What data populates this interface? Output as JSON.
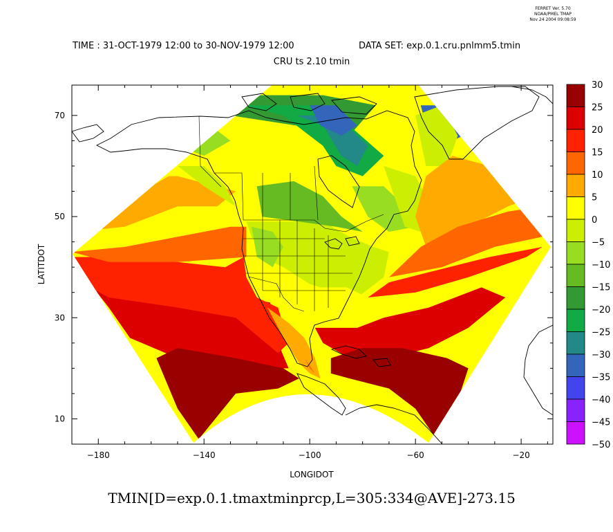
{
  "stamp": {
    "line1": "FERRET Ver. 5.70",
    "line2": "NOAA/PMEL TMAP",
    "line3": "Nov 24 2004 09:08:59"
  },
  "header": {
    "time": "TIME : 31-OCT-1979 12:00 to 30-NOV-1979 12:00",
    "dataset": "DATA SET: exp.0.1.cru.pnlmm5.tmin",
    "subtitle": "CRU ts 2.10 tmin"
  },
  "footer": {
    "expression": "TMIN[D=exp.0.1.tmaxtminprcp,L=305:334@AVE]-273.15"
  },
  "chart_data": {
    "type": "heatmap",
    "title": "CRU ts 2.10 tmin",
    "xlabel": "LONGIDOT",
    "ylabel": "LATITDOT",
    "xlim": [
      -190,
      -8
    ],
    "ylim": [
      5,
      76
    ],
    "x_ticks": [
      -180,
      -140,
      -100,
      -60,
      -20
    ],
    "x_tick_labels": [
      "−180",
      "−140",
      "−100",
      "−60",
      "−20"
    ],
    "y_ticks": [
      10,
      30,
      50,
      70
    ],
    "y_tick_labels": [
      "10",
      "30",
      "50",
      "70"
    ],
    "grid": false,
    "colorbar": {
      "levels": [
        30,
        25,
        20,
        15,
        10,
        5,
        0,
        -5,
        -10,
        -15,
        -20,
        -25,
        -30,
        -35,
        -40,
        -45,
        -50
      ],
      "labels": [
        "30",
        "25",
        "20",
        "15",
        "10",
        "5",
        "0",
        "−5",
        "−10",
        "−15",
        "−20",
        "−25",
        "−30",
        "−35",
        "−40",
        "−45",
        "−50"
      ],
      "colors": [
        "#990000",
        "#dd0000",
        "#ff2200",
        "#ff6600",
        "#ffaa00",
        "#ffff00",
        "#ccee00",
        "#99dd22",
        "#66bb22",
        "#339933",
        "#11aa44",
        "#228888",
        "#3366bb",
        "#4444ee",
        "#8822ff",
        "#cc11ff"
      ]
    },
    "regions": [
      {
        "band": "20 to 25",
        "color": "#dd0000",
        "outline": [
          [
            -190,
            40
          ],
          [
            -170,
            39
          ],
          [
            -150,
            38
          ],
          [
            -125,
            34
          ],
          [
            -115,
            33
          ],
          [
            -112,
            25
          ],
          [
            -108,
            20
          ],
          [
            -130,
            20
          ],
          [
            -150,
            22
          ],
          [
            -168,
            26
          ],
          [
            -176,
            32
          ],
          [
            -182,
            36
          ]
        ]
      },
      {
        "band": "15 to 20",
        "color": "#ff2200",
        "outline": [
          [
            -190,
            42
          ],
          [
            -176,
            42
          ],
          [
            -150,
            41
          ],
          [
            -132,
            40
          ],
          [
            -125,
            42
          ],
          [
            -124,
            38
          ],
          [
            -120,
            34
          ],
          [
            -112,
            32
          ],
          [
            -108,
            25
          ],
          [
            -112,
            23
          ],
          [
            -128,
            30
          ],
          [
            -150,
            32
          ],
          [
            -176,
            34
          ],
          [
            -190,
            38
          ]
        ]
      },
      {
        "band": "10 to 15",
        "color": "#ff6600",
        "outline": [
          [
            -190,
            43
          ],
          [
            -170,
            44
          ],
          [
            -150,
            46
          ],
          [
            -130,
            48
          ],
          [
            -124,
            48
          ],
          [
            -124,
            42
          ],
          [
            -150,
            41
          ],
          [
            -176,
            41
          ]
        ]
      },
      {
        "band": "5 to 10",
        "color": "#ffaa00",
        "outline": [
          [
            -188,
            47
          ],
          [
            -170,
            48
          ],
          [
            -150,
            52
          ],
          [
            -135,
            52
          ],
          [
            -128,
            55
          ],
          [
            -150,
            58
          ],
          [
            -170,
            58
          ],
          [
            -185,
            56
          ]
        ]
      },
      {
        "band": "0 to 5",
        "color": "#ffff00",
        "outline": [
          [
            -180,
            62
          ],
          [
            -165,
            65
          ],
          [
            -155,
            63
          ],
          [
            -150,
            59
          ],
          [
            -160,
            56
          ],
          [
            -175,
            55
          ]
        ]
      },
      {
        "band": "-5 to 0",
        "color": "#ccee00",
        "outline": [
          [
            -150,
            60
          ],
          [
            -140,
            60
          ],
          [
            -132,
            56
          ],
          [
            -128,
            52
          ],
          [
            -140,
            56
          ]
        ]
      },
      {
        "band": "-10 to -5",
        "color": "#99dd22",
        "outline": [
          [
            -165,
            70
          ],
          [
            -150,
            71
          ],
          [
            -140,
            69
          ],
          [
            -130,
            65
          ],
          [
            -140,
            62
          ],
          [
            -160,
            66
          ]
        ]
      },
      {
        "band": "-20 to -15",
        "color": "#339933",
        "outline": [
          [
            -150,
            72
          ],
          [
            -120,
            74
          ],
          [
            -95,
            74
          ],
          [
            -75,
            72
          ],
          [
            -85,
            66
          ],
          [
            -105,
            68
          ],
          [
            -130,
            70
          ]
        ]
      },
      {
        "band": "-25 to -20",
        "color": "#11aa44",
        "outline": [
          [
            -125,
            72
          ],
          [
            -110,
            70
          ],
          [
            -95,
            64
          ],
          [
            -90,
            60
          ],
          [
            -80,
            58
          ],
          [
            -72,
            62
          ],
          [
            -85,
            68
          ],
          [
            -100,
            72
          ]
        ]
      },
      {
        "band": "-30 to -25",
        "color": "#228888",
        "outline": [
          [
            -105,
            70
          ],
          [
            -95,
            68
          ],
          [
            -88,
            62
          ],
          [
            -82,
            60
          ],
          [
            -78,
            64
          ],
          [
            -90,
            70
          ]
        ]
      },
      {
        "band": "-35 to -30",
        "color": "#3366bb",
        "outline": [
          [
            -100,
            72
          ],
          [
            -90,
            72
          ],
          [
            -82,
            68
          ],
          [
            -88,
            66
          ],
          [
            -96,
            68
          ]
        ]
      },
      {
        "band": "-35 to -30",
        "color": "#3366bb",
        "outline": [
          [
            -58,
            72
          ],
          [
            -48,
            72
          ],
          [
            -42,
            66
          ],
          [
            -50,
            64
          ],
          [
            -56,
            68
          ]
        ]
      },
      {
        "band": "-5 to 0",
        "color": "#ccee00",
        "outline": [
          [
            -124,
            49
          ],
          [
            -110,
            49
          ],
          [
            -95,
            49
          ],
          [
            -85,
            46
          ],
          [
            -76,
            44
          ],
          [
            -70,
            43
          ],
          [
            -72,
            38
          ],
          [
            -82,
            34
          ],
          [
            -96,
            36
          ],
          [
            -108,
            38
          ],
          [
            -116,
            42
          ],
          [
            -122,
            46
          ]
        ]
      },
      {
        "band": "0 to 5",
        "color": "#ffff00",
        "outline": [
          [
            -122,
            40
          ],
          [
            -112,
            38
          ],
          [
            -100,
            34
          ],
          [
            -90,
            32
          ],
          [
            -82,
            31
          ],
          [
            -78,
            34
          ],
          [
            -86,
            36
          ],
          [
            -98,
            36
          ],
          [
            -110,
            40
          ],
          [
            -118,
            42
          ]
        ]
      },
      {
        "band": "5 to 10",
        "color": "#ffaa00",
        "outline": [
          [
            -116,
            32
          ],
          [
            -108,
            29
          ],
          [
            -102,
            26
          ],
          [
            -98,
            22
          ],
          [
            -96,
            18
          ],
          [
            -100,
            19
          ],
          [
            -104,
            21
          ],
          [
            -110,
            26
          ]
        ]
      },
      {
        "band": "10 to 15",
        "color": "#ff6600",
        "outline": [
          [
            -108,
            28
          ],
          [
            -102,
            22
          ],
          [
            -98,
            19
          ],
          [
            -100,
            20
          ],
          [
            -104,
            24
          ]
        ]
      },
      {
        "band": "-10 to -5",
        "color": "#99dd22",
        "outline": [
          [
            -122,
            48
          ],
          [
            -114,
            47
          ],
          [
            -110,
            44
          ],
          [
            -114,
            40
          ],
          [
            -120,
            42
          ]
        ]
      },
      {
        "band": "-15 to -10",
        "color": "#66bb22",
        "outline": [
          [
            -120,
            56
          ],
          [
            -106,
            57
          ],
          [
            -95,
            54
          ],
          [
            -88,
            50
          ],
          [
            -80,
            47
          ],
          [
            -90,
            48
          ],
          [
            -104,
            49
          ],
          [
            -118,
            50
          ]
        ]
      },
      {
        "band": "-10 to -5",
        "color": "#99dd22",
        "outline": [
          [
            -84,
            56
          ],
          [
            -72,
            56
          ],
          [
            -64,
            52
          ],
          [
            -60,
            48
          ],
          [
            -70,
            47
          ],
          [
            -78,
            50
          ]
        ]
      },
      {
        "band": "-5 to 0",
        "color": "#ccee00",
        "outline": [
          [
            -72,
            60
          ],
          [
            -60,
            58
          ],
          [
            -54,
            52
          ],
          [
            -58,
            47
          ],
          [
            -64,
            48
          ],
          [
            -68,
            54
          ]
        ]
      },
      {
        "band": "-5 to 0",
        "color": "#ccee00",
        "outline": [
          [
            -60,
            70
          ],
          [
            -50,
            72
          ],
          [
            -44,
            66
          ],
          [
            -48,
            60
          ],
          [
            -56,
            60
          ]
        ]
      },
      {
        "band": "5 to 10",
        "color": "#ffaa00",
        "outline": [
          [
            -56,
            44
          ],
          [
            -40,
            48
          ],
          [
            -25,
            52
          ],
          [
            -15,
            54
          ],
          [
            -18,
            60
          ],
          [
            -32,
            60
          ],
          [
            -46,
            62
          ],
          [
            -56,
            58
          ],
          [
            -60,
            50
          ]
        ]
      },
      {
        "band": "10 to 15",
        "color": "#ff6600",
        "outline": [
          [
            -70,
            38
          ],
          [
            -50,
            40
          ],
          [
            -30,
            44
          ],
          [
            -12,
            46
          ],
          [
            -12,
            52
          ],
          [
            -25,
            51
          ],
          [
            -44,
            48
          ],
          [
            -58,
            44
          ]
        ]
      },
      {
        "band": "15 to 20",
        "color": "#ff2200",
        "outline": [
          [
            -78,
            34
          ],
          [
            -60,
            35
          ],
          [
            -40,
            38
          ],
          [
            -18,
            42
          ],
          [
            -12,
            44
          ],
          [
            -32,
            42
          ],
          [
            -55,
            39
          ],
          [
            -70,
            37
          ]
        ]
      },
      {
        "band": "20 to 25",
        "color": "#dd0000",
        "outline": [
          [
            -98,
            28
          ],
          [
            -82,
            28
          ],
          [
            -72,
            30
          ],
          [
            -55,
            32
          ],
          [
            -35,
            36
          ],
          [
            -26,
            34
          ],
          [
            -40,
            28
          ],
          [
            -55,
            24
          ],
          [
            -70,
            22
          ],
          [
            -85,
            22
          ],
          [
            -95,
            25
          ]
        ]
      },
      {
        "band": "25 to 30",
        "color": "#990000",
        "outline": [
          [
            -92,
            22
          ],
          [
            -80,
            24
          ],
          [
            -65,
            24
          ],
          [
            -48,
            22
          ],
          [
            -40,
            20
          ],
          [
            -45,
            12
          ],
          [
            -52,
            6
          ],
          [
            -60,
            12
          ],
          [
            -70,
            16
          ],
          [
            -85,
            18
          ],
          [
            -92,
            19
          ]
        ]
      },
      {
        "band": "25 to 30",
        "color": "#990000",
        "outline": [
          [
            -158,
            22
          ],
          [
            -150,
            24
          ],
          [
            -128,
            22
          ],
          [
            -110,
            20
          ],
          [
            -104,
            18
          ],
          [
            -112,
            16
          ],
          [
            -128,
            15
          ],
          [
            -142,
            6
          ],
          [
            -150,
            12
          ]
        ]
      }
    ]
  }
}
